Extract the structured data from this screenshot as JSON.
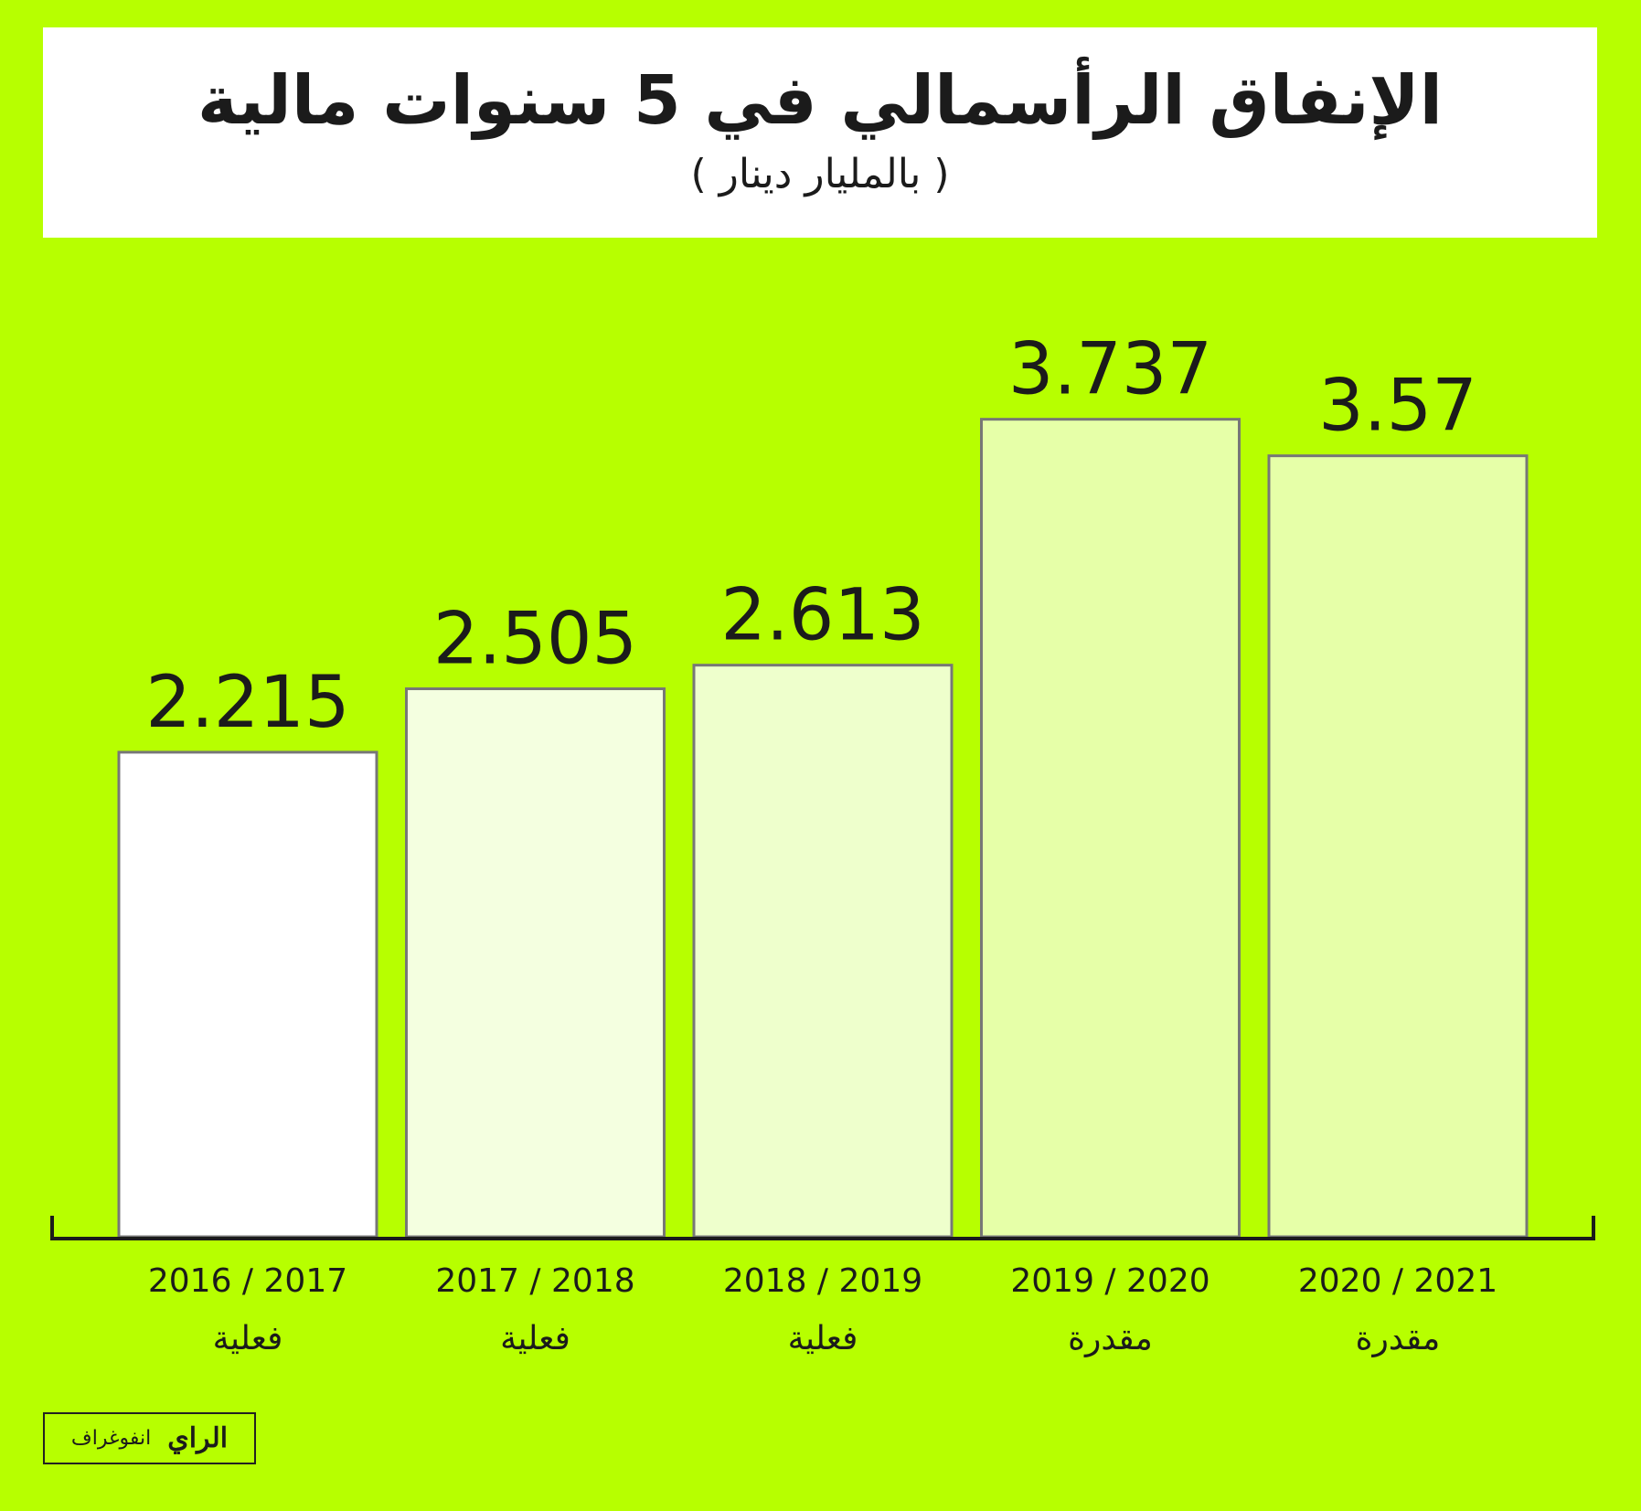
{
  "title": "الإنفاق الرأسمالي في 5 سنوات مالية",
  "subtitle": "( بالمليار دينار )",
  "chart_data": {
    "type": "bar",
    "title": "الإنفاق الرأسمالي في 5 سنوات مالية",
    "subtitle": "( بالمليار دينار )",
    "categories": [
      "2016 / 2017",
      "2017 / 2018",
      "2018 / 2019",
      "2019 / 2020",
      "2020 / 2021"
    ],
    "category_notes": [
      "فعلية",
      "فعلية",
      "فعلية",
      "مقدرة",
      "مقدرة"
    ],
    "values": [
      2.215,
      2.505,
      2.613,
      3.737,
      3.57
    ],
    "value_labels": [
      "2.215",
      "2.505",
      "2.613",
      "3.737",
      "3.57"
    ],
    "bar_colors": [
      "#ffffff",
      "#f4ffe0",
      "#eeffcc",
      "#e6ffa8",
      "#e6ffa8"
    ],
    "ylim": [
      0,
      4.4
    ],
    "grid": false,
    "legend": "none"
  },
  "colors": {
    "background": "#b7ff00",
    "title_box": "#ffffff",
    "text": "#1b1b1b",
    "bar_outline": "#777777"
  },
  "credit": {
    "label": "انفوغراف",
    "logo_text": "الراي"
  }
}
